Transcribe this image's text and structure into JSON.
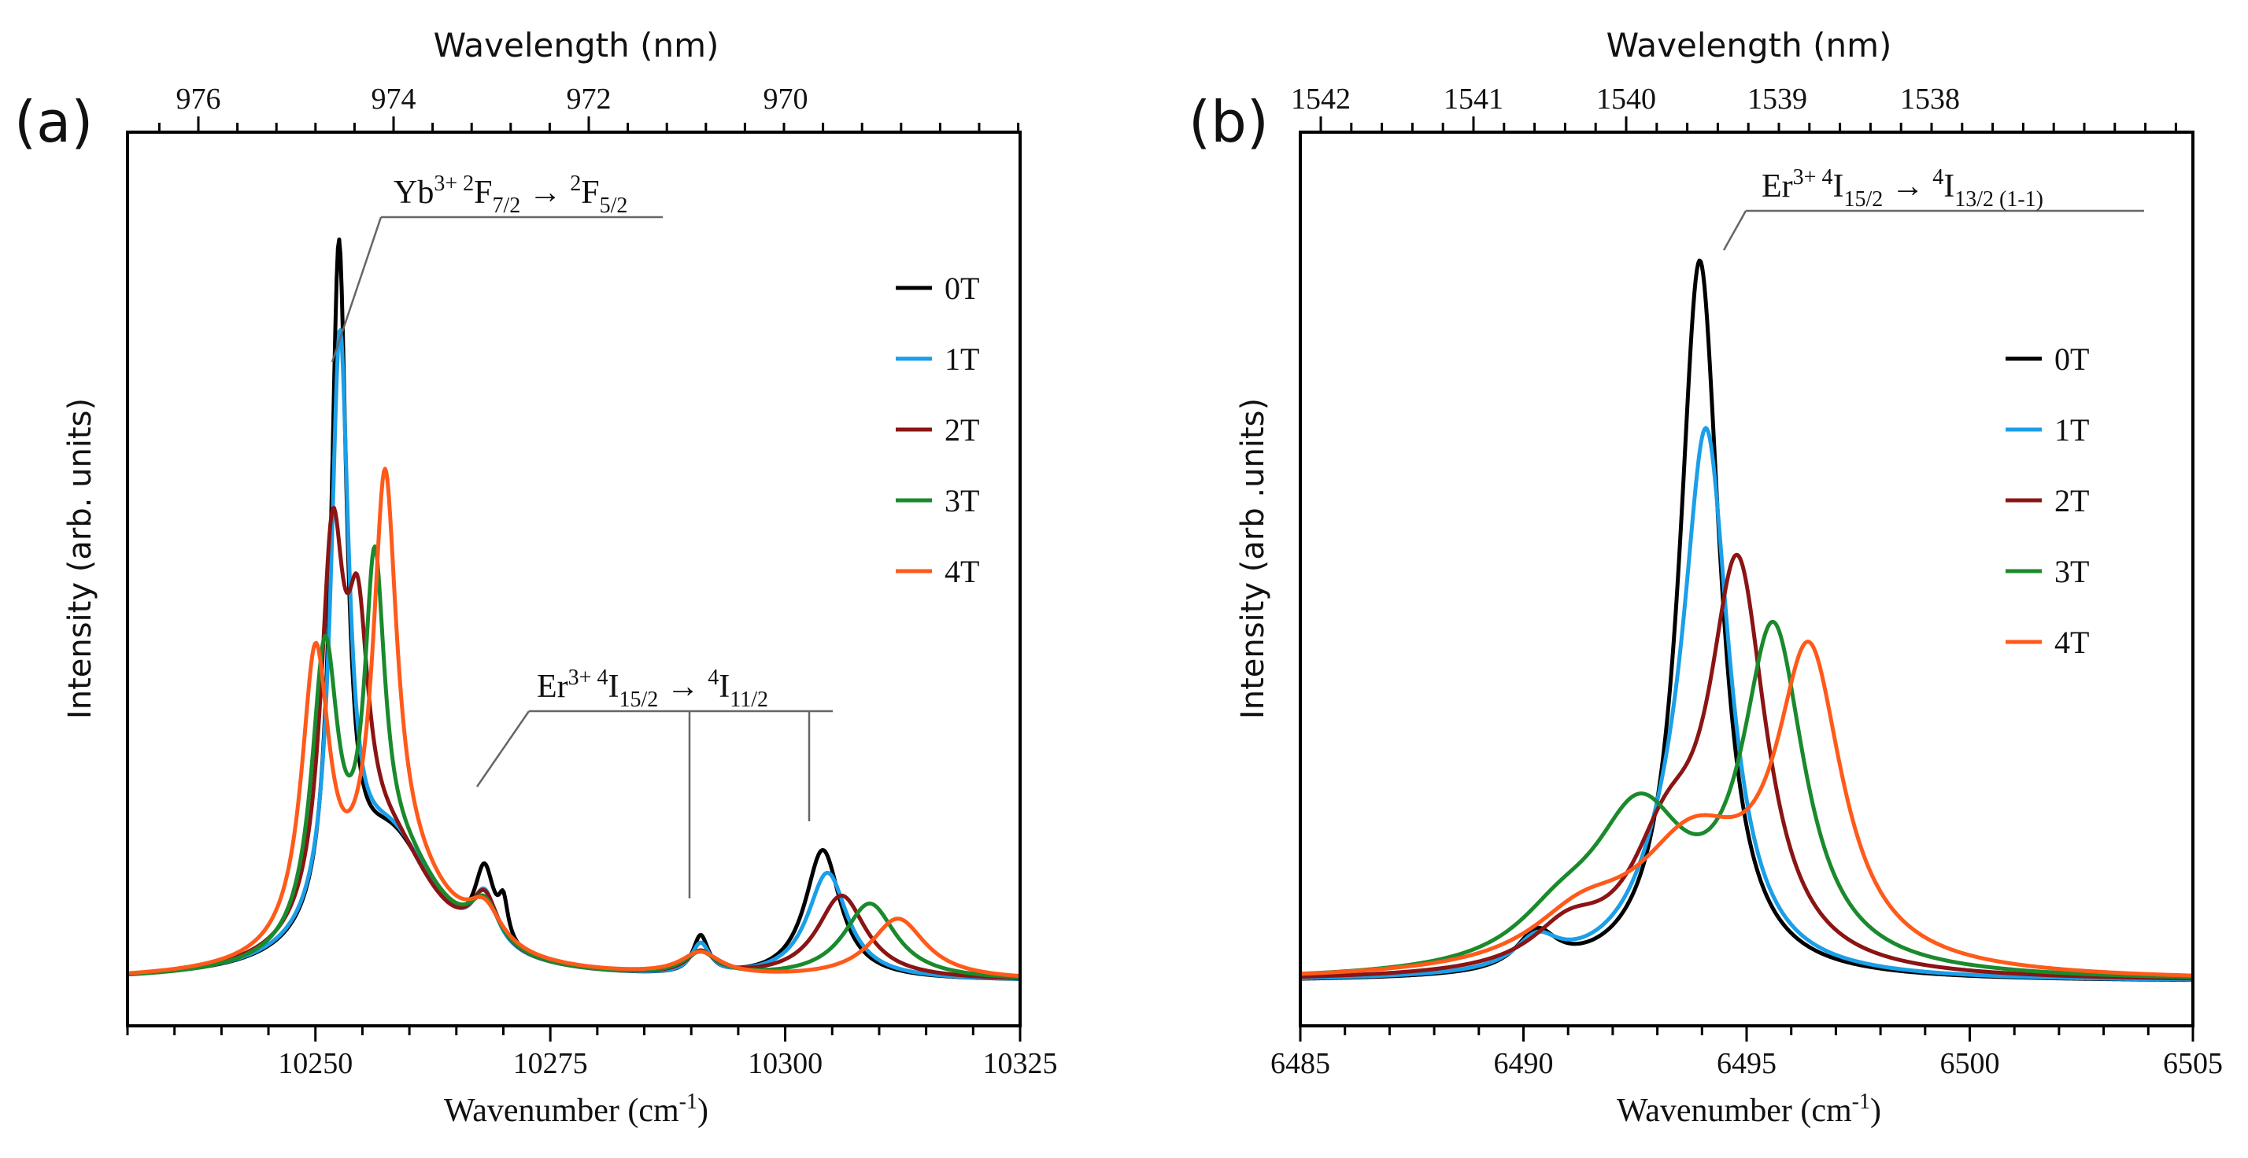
{
  "chart_data": [
    {
      "panel_label": "(a)",
      "type": "line",
      "xlabel": "Wavenumber (cm⁻¹)",
      "ylabel": "Intensity (arb. units)",
      "top_axis_label": "Wavelength (nm)",
      "xlim": [
        10230,
        10325
      ],
      "ylim": [
        0,
        1.06
      ],
      "x_ticks": [
        "10250",
        "10275",
        "10300",
        "10325"
      ],
      "top_ticks": [
        "976",
        "974",
        "972",
        "970"
      ],
      "annotations": [
        {
          "text_parts": [
            "Yb",
            "3+ 2",
            "F",
            "7/2",
            " → ",
            "2",
            "F",
            "5/2"
          ]
        },
        {
          "text_parts": [
            "Er",
            "3+ 4",
            "I",
            "15/2",
            " → ",
            "4",
            "I",
            "11/2"
          ]
        }
      ],
      "legend_position": "right",
      "legend": [
        "0T",
        "1T",
        "2T",
        "3T",
        "4T"
      ],
      "series": [
        {
          "name": "0T",
          "color": "#000000",
          "peaks": [
            [
              10252.5,
              0.88,
              1.0
            ],
            [
              10258,
              0.18,
              6.0
            ],
            [
              10268,
              0.1,
              1.3
            ],
            [
              10270,
              0.05,
              0.6
            ],
            [
              10291,
              0.05,
              1.0
            ],
            [
              10304,
              0.17,
              2.3
            ]
          ]
        },
        {
          "name": "1T",
          "color": "#1a9fe8",
          "peaks": [
            [
              10252.6,
              0.76,
              1.15
            ],
            [
              10258,
              0.18,
              6.0
            ],
            [
              10268,
              0.07,
              1.6
            ],
            [
              10291,
              0.04,
              1.2
            ],
            [
              10304.5,
              0.14,
              2.6
            ]
          ]
        },
        {
          "name": "2T",
          "color": "#8b1414",
          "peaks": [
            [
              10251.8,
              0.48,
              1.5
            ],
            [
              10254.5,
              0.3,
              1.4
            ],
            [
              10258,
              0.16,
              6.0
            ],
            [
              10268,
              0.07,
              1.8
            ],
            [
              10291,
              0.03,
              1.8
            ],
            [
              10306,
              0.11,
              3.2
            ]
          ]
        },
        {
          "name": "3T",
          "color": "#1a8a2c",
          "peaks": [
            [
              10251,
              0.38,
              1.7
            ],
            [
              10256.3,
              0.42,
              1.3
            ],
            [
              10259,
              0.14,
              6.0
            ],
            [
              10268,
              0.06,
              2.0
            ],
            [
              10291,
              0.03,
              2.2
            ],
            [
              10309,
              0.1,
              3.4
            ]
          ]
        },
        {
          "name": "4T",
          "color": "#ff5a1a",
          "peaks": [
            [
              10250,
              0.38,
              1.8
            ],
            [
              10257.4,
              0.53,
              1.5
            ],
            [
              10259,
              0.13,
              6.5
            ],
            [
              10268,
              0.05,
              2.2
            ],
            [
              10291,
              0.03,
              2.6
            ],
            [
              10312,
              0.08,
              3.6
            ]
          ]
        }
      ]
    },
    {
      "panel_label": "(b)",
      "type": "line",
      "xlabel": "Wavenumber (cm⁻¹)",
      "ylabel": "Intensity (arb .units)",
      "top_axis_label": "Wavelength (nm)",
      "xlim": [
        6485,
        6505
      ],
      "ylim": [
        0,
        1.06
      ],
      "x_ticks": [
        "6485",
        "6490",
        "6495",
        "6500",
        "6505"
      ],
      "top_ticks": [
        "1542",
        "1541",
        "1540",
        "1539",
        "1538"
      ],
      "annotations": [
        {
          "text_parts": [
            "Er",
            "3+ 4",
            "I",
            "15/2",
            " → ",
            "4",
            "I",
            "13/2 (1-1)"
          ]
        }
      ],
      "legend_position": "right",
      "legend": [
        "0T",
        "1T",
        "2T",
        "3T",
        "4T"
      ],
      "series": [
        {
          "name": "0T",
          "color": "#000000",
          "peaks": [
            [
              6493.95,
              0.95,
              0.55
            ],
            [
              6490.3,
              0.05,
              0.55
            ]
          ]
        },
        {
          "name": "1T",
          "color": "#1a9fe8",
          "peaks": [
            [
              6494.1,
              0.68,
              0.62
            ],
            [
              6493.3,
              0.08,
              1.0
            ],
            [
              6490.3,
              0.04,
              0.6
            ]
          ]
        },
        {
          "name": "2T",
          "color": "#8b1414",
          "peaks": [
            [
              6494.8,
              0.52,
              0.78
            ],
            [
              6493.2,
              0.14,
              1.0
            ],
            [
              6491,
              0.05,
              1.0
            ]
          ]
        },
        {
          "name": "3T",
          "color": "#1a8a2c",
          "peaks": [
            [
              6495.6,
              0.44,
              0.85
            ],
            [
              6492.6,
              0.2,
              1.3
            ],
            [
              6490.8,
              0.05,
              1.2
            ]
          ]
        },
        {
          "name": "4T",
          "color": "#ff5a1a",
          "peaks": [
            [
              6496.4,
              0.4,
              0.9
            ],
            [
              6493.8,
              0.16,
              1.6
            ],
            [
              6491.3,
              0.06,
              1.4
            ]
          ]
        }
      ]
    }
  ]
}
